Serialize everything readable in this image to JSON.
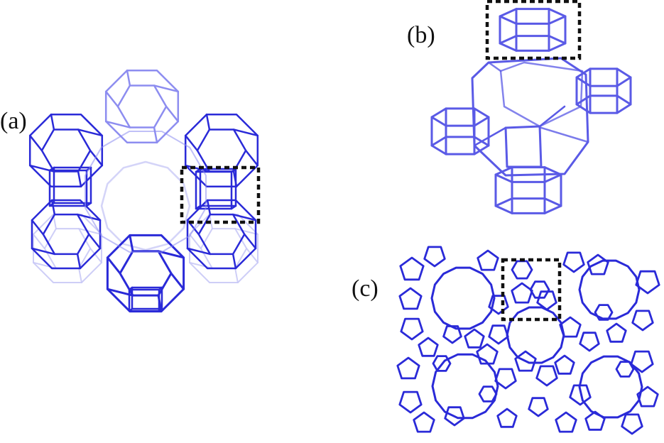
{
  "panels": [
    {
      "id": "a",
      "label": "(a)"
    },
    {
      "id": "b",
      "label": "(b)"
    },
    {
      "id": "c",
      "label": "(c)"
    }
  ],
  "colors": {
    "framework": "#2a2ad8",
    "framework_light": "#8d8df0",
    "framework_faint": "#c9c9f6",
    "highlight_box": "#111111"
  }
}
